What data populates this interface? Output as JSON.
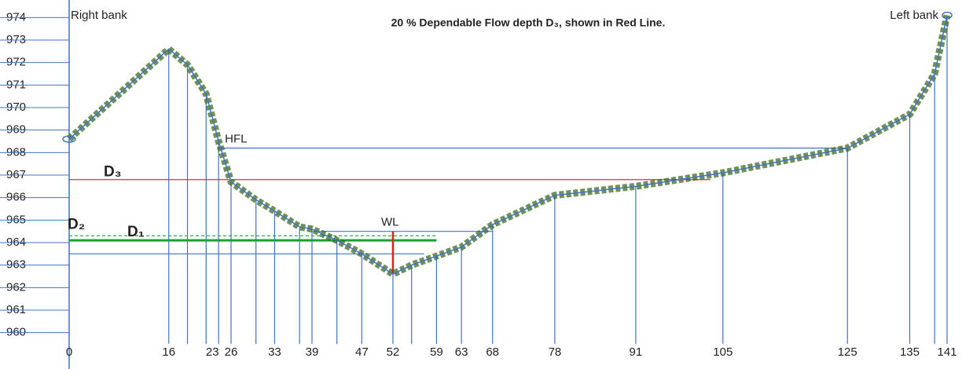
{
  "chart_data": {
    "type": "line",
    "title": "20 % Dependable Flow depth D₃, shown in Red Line.",
    "right_bank": "Right bank",
    "left_bank": "Left bank",
    "x": [
      0,
      16,
      19,
      22,
      24,
      26,
      30,
      33,
      37,
      39,
      43,
      47,
      52,
      55,
      59,
      63,
      68,
      78,
      91,
      105,
      125,
      135,
      139,
      141
    ],
    "values": [
      968.6,
      972.6,
      971.9,
      970.6,
      968.5,
      966.7,
      965.9,
      965.4,
      964.7,
      964.6,
      964.1,
      963.5,
      962.6,
      963.0,
      963.4,
      963.8,
      964.8,
      966.1,
      966.5,
      967.1,
      968.2,
      969.7,
      971.5,
      974.1
    ],
    "color": "#4472c4",
    "vegetation_color": "#3d6b22",
    "levels": [
      {
        "label": "HFL",
        "value": 968.2,
        "from": 24,
        "to": 125,
        "color": "#4472c4"
      },
      {
        "label": "D₃",
        "value": 966.8,
        "from": 0,
        "to": 103,
        "color": "#e03030"
      },
      {
        "label": "WL",
        "value": 964.5,
        "from": 39,
        "to": 68,
        "color": "#4472c4"
      },
      {
        "label": "D₂",
        "value": 964.3,
        "from": 0,
        "to": 59,
        "color": "#3aa84a",
        "dashed": true
      },
      {
        "label": "D₁",
        "value": 964.1,
        "from": 0,
        "to": 59,
        "color": "#1e9e3a"
      },
      {
        "value": 963.5,
        "from": 0,
        "to": 57,
        "color": "#4472c4"
      }
    ],
    "depth_marker": {
      "x": 52,
      "from": 962.6,
      "to": 964.5,
      "color": "#e02020"
    },
    "xlim": [
      0,
      141
    ],
    "xticks": [
      0,
      16,
      23,
      26,
      33,
      39,
      47,
      52,
      59,
      63,
      68,
      78,
      91,
      105,
      125,
      135,
      141
    ],
    "ylim": [
      959.5,
      974.5
    ],
    "yticks": [
      960,
      961,
      962,
      963,
      964,
      965,
      966,
      967,
      968,
      969,
      970,
      971,
      972,
      973,
      974
    ],
    "grid": true
  }
}
